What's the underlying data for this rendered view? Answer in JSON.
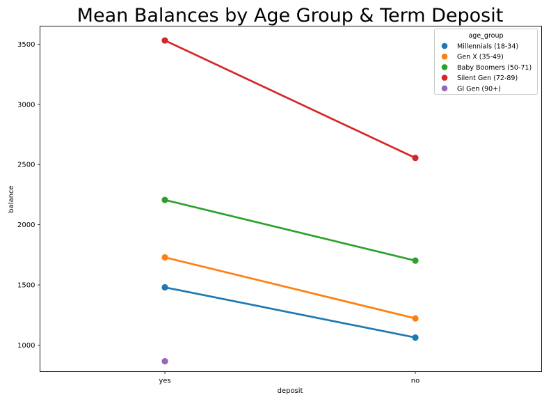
{
  "chart_data": {
    "type": "line",
    "title": "Mean Balances by Age Group & Term Deposit",
    "xlabel": "deposit",
    "ylabel": "balance",
    "categories": [
      "yes",
      "no"
    ],
    "ylim": [
      780,
      3650
    ],
    "yticks": [
      1000,
      1500,
      2000,
      2500,
      3000,
      3500
    ],
    "grid": false,
    "legend": {
      "title": "age_group",
      "placement": "top-right"
    },
    "series": [
      {
        "name": "Millennials (18-34)",
        "color": "#1f77b4",
        "values": [
          1480,
          1063
        ]
      },
      {
        "name": "Gen X (35-49)",
        "color": "#ff7f0e",
        "values": [
          1729,
          1222
        ]
      },
      {
        "name": "Baby Boomers (50-71)",
        "color": "#2ca02c",
        "values": [
          2206,
          1702
        ]
      },
      {
        "name": "Silent Gen (72-89)",
        "color": "#d62728",
        "values": [
          3531,
          2555
        ]
      },
      {
        "name": "GI Gen (90+)",
        "color": "#9467bd",
        "values": [
          866,
          null
        ]
      }
    ]
  }
}
